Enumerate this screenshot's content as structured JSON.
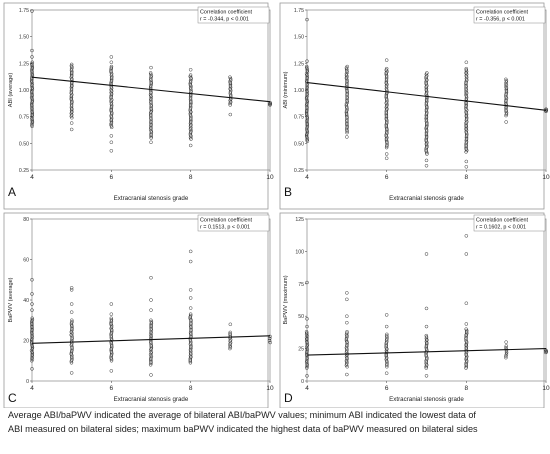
{
  "chart_data": [
    {
      "type": "scatter",
      "panel_letter": "A",
      "xlabel": "Extracranial stenosis grade",
      "ylabel": "ABI (average)",
      "xlim": [
        4,
        10
      ],
      "ylim": [
        0.25,
        1.75
      ],
      "xticks": [
        "4",
        "6",
        "8",
        "10"
      ],
      "yticks": [
        "0.25",
        "0.50",
        "0.75",
        "1.00",
        "1.25",
        "1.50",
        "1.75"
      ],
      "annotation": [
        "Correlation coefficient",
        "r = -0.344, p < 0.001"
      ],
      "trendline": {
        "x": [
          4,
          10
        ],
        "y": [
          1.12,
          0.89
        ]
      },
      "groups": [
        {
          "x": 4,
          "low": 0.66,
          "high": 1.26,
          "outliers": [
            1.37,
            1.31,
            1.74
          ]
        },
        {
          "x": 5,
          "low": 0.74,
          "high": 1.24,
          "outliers": [
            0.69,
            0.63
          ]
        },
        {
          "x": 6,
          "low": 0.65,
          "high": 1.22,
          "outliers": [
            0.57,
            0.51,
            0.43,
            1.26,
            1.31
          ]
        },
        {
          "x": 7,
          "low": 0.55,
          "high": 1.16,
          "outliers": [
            0.51,
            1.21
          ]
        },
        {
          "x": 8,
          "low": 0.54,
          "high": 1.14,
          "outliers": [
            0.48,
            1.19
          ]
        },
        {
          "x": 9,
          "low": 0.86,
          "high": 1.12,
          "outliers": [
            0.77
          ]
        },
        {
          "x": 10,
          "low": 0.86,
          "high": 0.88,
          "outliers": []
        }
      ]
    },
    {
      "type": "scatter",
      "panel_letter": "B",
      "xlabel": "Extracranial stenosis grade",
      "ylabel": "ABI (minimum)",
      "xlim": [
        4,
        10
      ],
      "ylim": [
        0.25,
        1.75
      ],
      "xticks": [
        "4",
        "6",
        "8",
        "10"
      ],
      "yticks": [
        "0.25",
        "0.50",
        "0.75",
        "1.00",
        "1.25",
        "1.50",
        "1.75"
      ],
      "annotation": [
        "Correlation coefficient",
        "r = -0.356, p < 0.001"
      ],
      "trendline": {
        "x": [
          4,
          10
        ],
        "y": [
          1.07,
          0.81
        ]
      },
      "groups": [
        {
          "x": 4,
          "low": 0.52,
          "high": 1.22,
          "outliers": [
            1.27,
            1.66
          ]
        },
        {
          "x": 5,
          "low": 0.6,
          "high": 1.22,
          "outliers": [
            0.56
          ]
        },
        {
          "x": 6,
          "low": 0.46,
          "high": 1.2,
          "outliers": [
            0.4,
            0.36,
            1.28
          ]
        },
        {
          "x": 7,
          "low": 0.4,
          "high": 1.16,
          "outliers": [
            0.34,
            0.29
          ]
        },
        {
          "x": 8,
          "low": 0.42,
          "high": 1.2,
          "outliers": [
            0.33,
            0.28,
            1.26
          ]
        },
        {
          "x": 9,
          "low": 0.76,
          "high": 1.1,
          "outliers": [
            0.7
          ]
        },
        {
          "x": 10,
          "low": 0.8,
          "high": 0.82,
          "outliers": []
        }
      ]
    },
    {
      "type": "scatter",
      "panel_letter": "C",
      "xlabel": "Extracranial stenosis grade",
      "ylabel": "BaPWV (average)",
      "xlim": [
        4,
        10
      ],
      "ylim": [
        0,
        80
      ],
      "xticks": [
        "4",
        "6",
        "8",
        "10"
      ],
      "yticks": [
        "0",
        "20",
        "40",
        "60",
        "80"
      ],
      "annotation": [
        "Correlation coefficient",
        "r = 0.1513, p < 0.001"
      ],
      "trendline": {
        "x": [
          4,
          10
        ],
        "y": [
          18.6,
          22.3
        ]
      },
      "groups": [
        {
          "x": 4,
          "low": 10,
          "high": 31,
          "outliers": [
            6,
            35,
            38,
            43,
            50
          ]
        },
        {
          "x": 5,
          "low": 9,
          "high": 30,
          "outliers": [
            4,
            34,
            38,
            45,
            46
          ]
        },
        {
          "x": 6,
          "low": 10,
          "high": 31,
          "outliers": [
            5,
            33,
            38
          ]
        },
        {
          "x": 7,
          "low": 8,
          "high": 30,
          "outliers": [
            3,
            35,
            40,
            51
          ]
        },
        {
          "x": 8,
          "low": 9,
          "high": 33,
          "outliers": [
            36,
            41,
            45,
            59,
            64
          ]
        },
        {
          "x": 9,
          "low": 16,
          "high": 24,
          "outliers": [
            28
          ]
        },
        {
          "x": 10,
          "low": 19,
          "high": 22,
          "outliers": []
        }
      ]
    },
    {
      "type": "scatter",
      "panel_letter": "D",
      "xlabel": "Extracranial stenosis grade",
      "ylabel": "BaPWV (maximum)",
      "xlim": [
        4,
        10
      ],
      "ylim": [
        0,
        125
      ],
      "xticks": [
        "4",
        "6",
        "8",
        "10"
      ],
      "yticks": [
        "0",
        "25",
        "50",
        "75",
        "100",
        "125"
      ],
      "annotation": [
        "Correlation coefficient",
        "r = 0.1602, p < 0.001"
      ],
      "trendline": {
        "x": [
          4,
          10
        ],
        "y": [
          20,
          25
        ]
      },
      "groups": [
        {
          "x": 4,
          "low": 10,
          "high": 38,
          "outliers": [
            4,
            42,
            48,
            76
          ]
        },
        {
          "x": 5,
          "low": 11,
          "high": 38,
          "outliers": [
            5,
            45,
            50,
            63,
            68
          ]
        },
        {
          "x": 6,
          "low": 11,
          "high": 36,
          "outliers": [
            6,
            42,
            51
          ]
        },
        {
          "x": 7,
          "low": 10,
          "high": 35,
          "outliers": [
            4,
            42,
            56,
            98
          ]
        },
        {
          "x": 8,
          "low": 10,
          "high": 40,
          "outliers": [
            44,
            60,
            98,
            112
          ]
        },
        {
          "x": 9,
          "low": 18,
          "high": 27,
          "outliers": [
            30
          ]
        },
        {
          "x": 10,
          "low": 22,
          "high": 24,
          "outliers": []
        }
      ]
    }
  ],
  "caption": [
    "Average ABI/baPWV indicated the average of bilateral ABI/baPWV values; minimum ABI indicated the lowest data of",
    "ABI measured on bilateral sides; maximum baPWV indicated the highest data of baPWV measured on bilateral sides"
  ]
}
